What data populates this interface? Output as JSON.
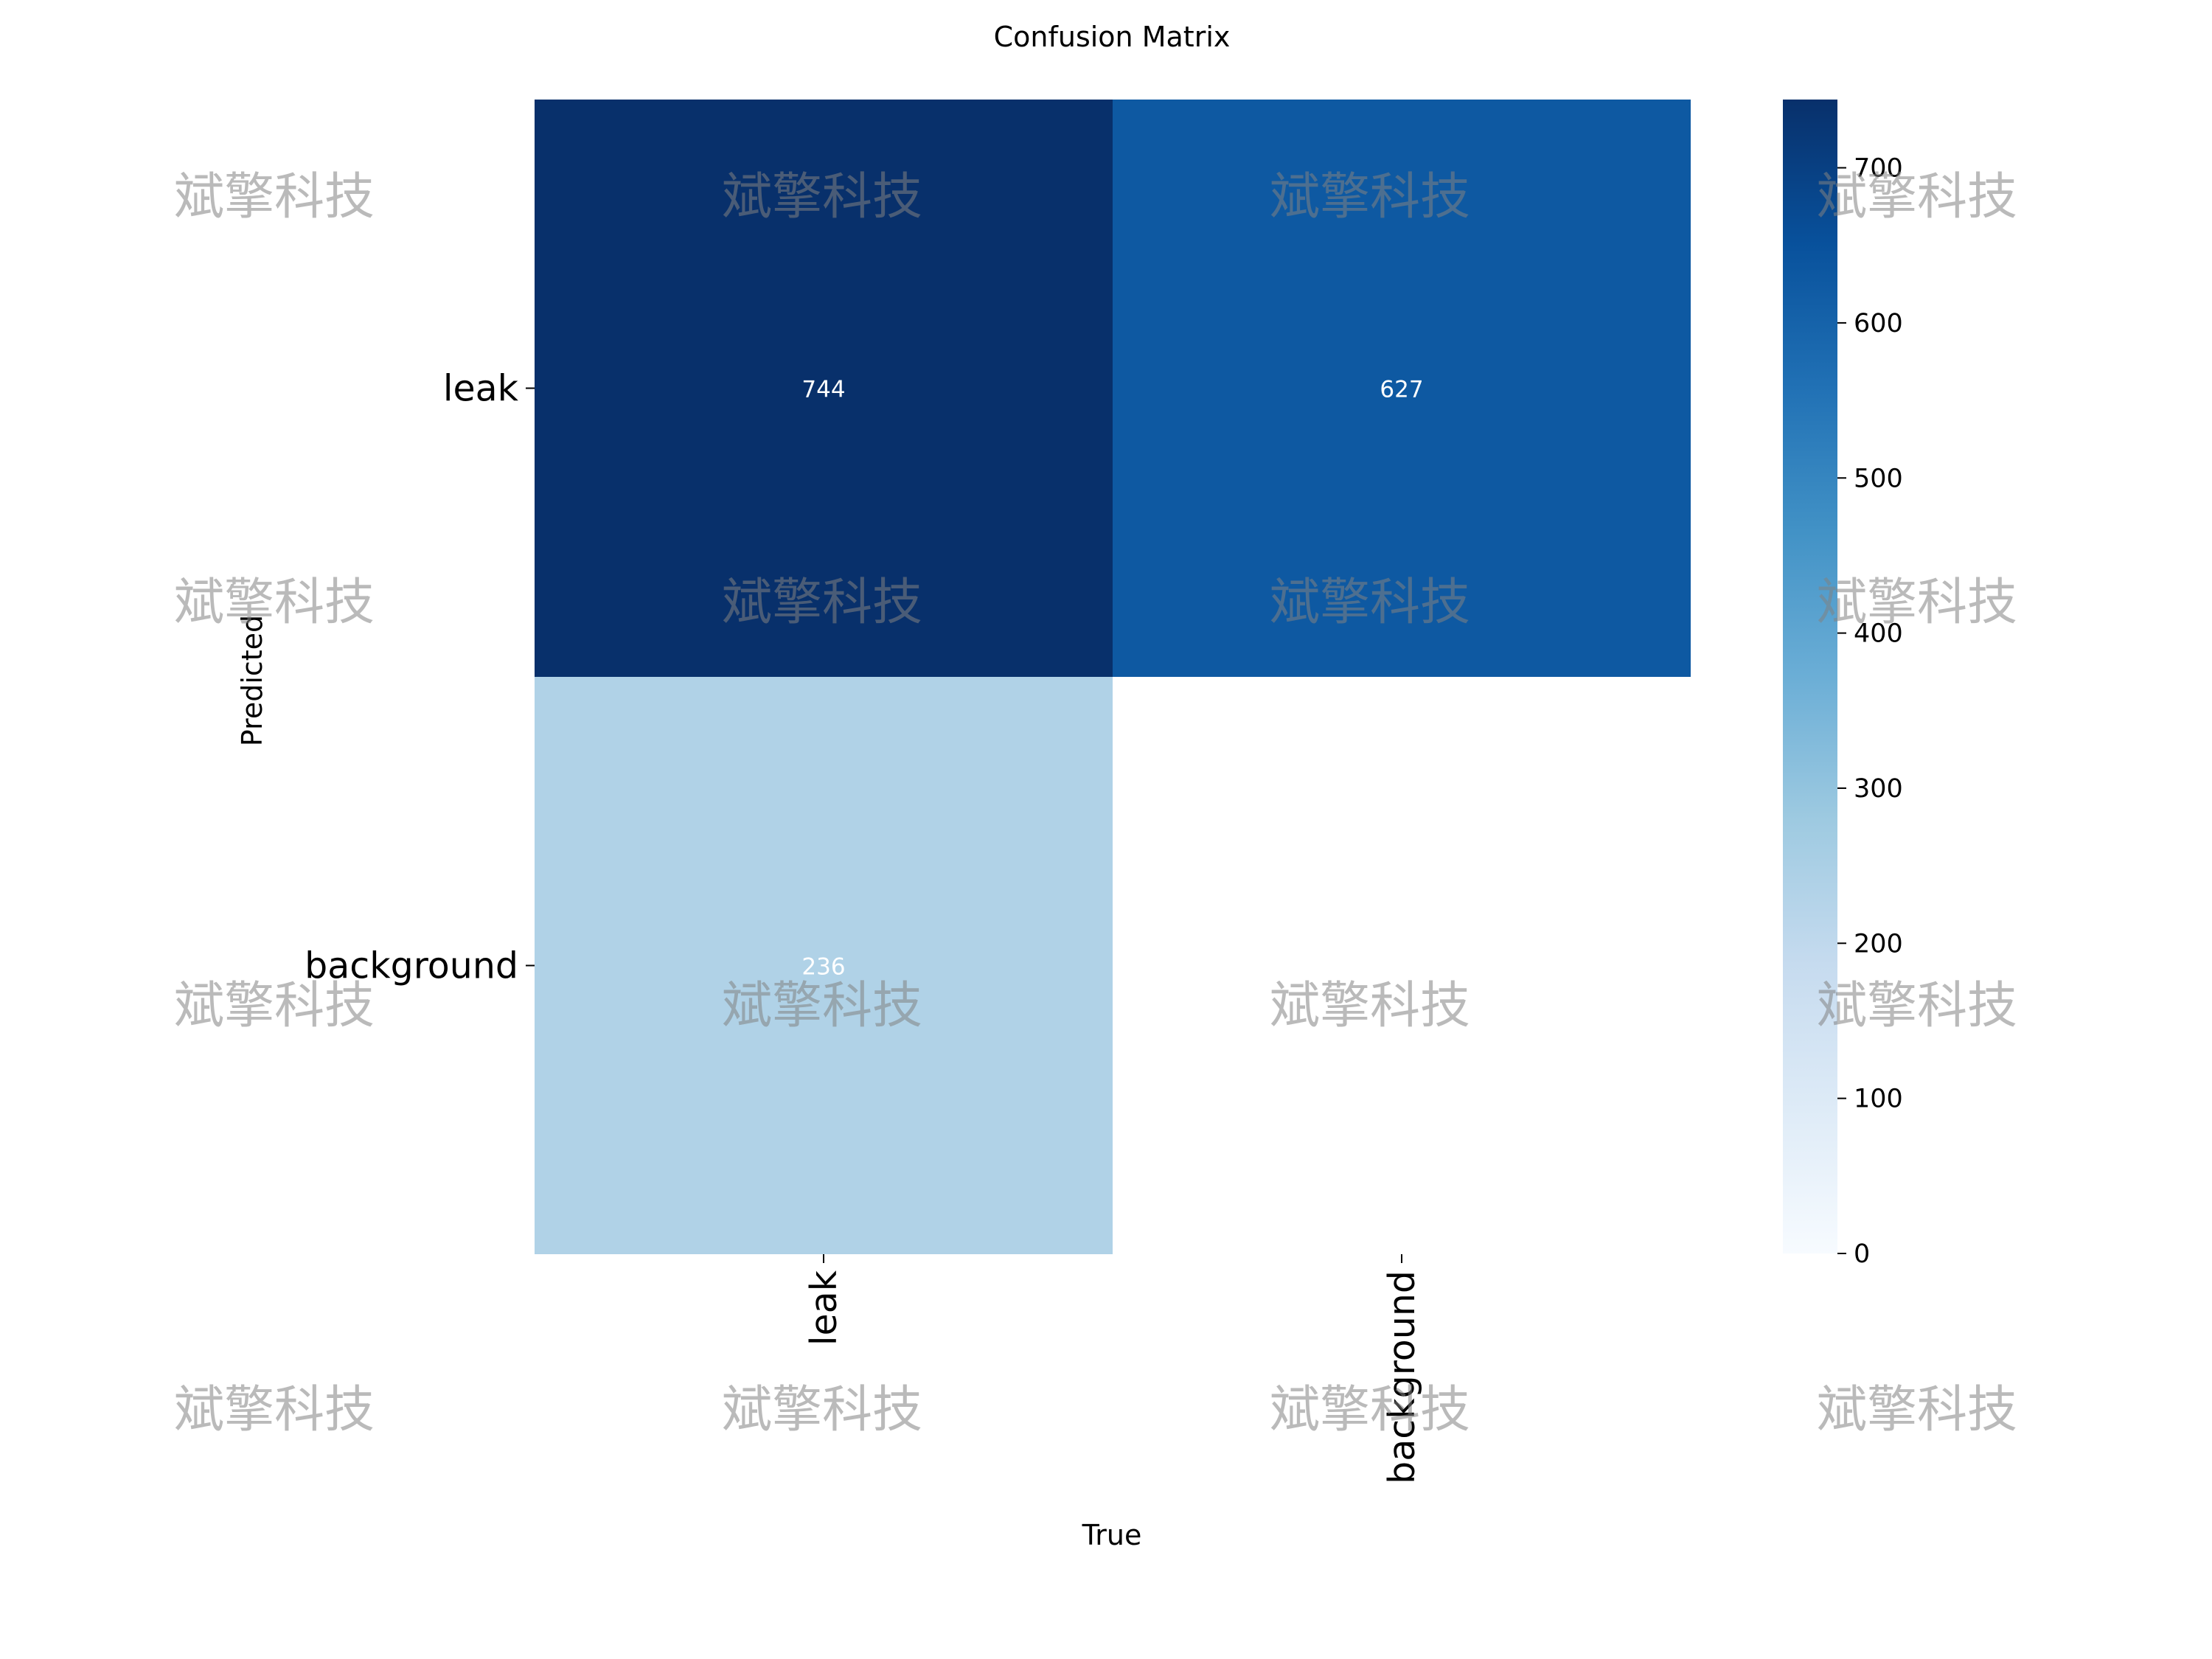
{
  "chart_data": {
    "type": "heatmap",
    "title": "Confusion Matrix",
    "xlabel": "True",
    "ylabel": "Predicted",
    "x_categories": [
      "leak",
      "background"
    ],
    "y_categories": [
      "leak",
      "background"
    ],
    "matrix": [
      [
        744,
        627
      ],
      [
        236,
        null
      ]
    ],
    "colorbar": {
      "min": 0,
      "max": 744,
      "ticks": [
        "0",
        "100",
        "200",
        "300",
        "400",
        "500",
        "600",
        "700"
      ],
      "colormap": "Blues"
    },
    "watermark": "斌擎科技"
  }
}
